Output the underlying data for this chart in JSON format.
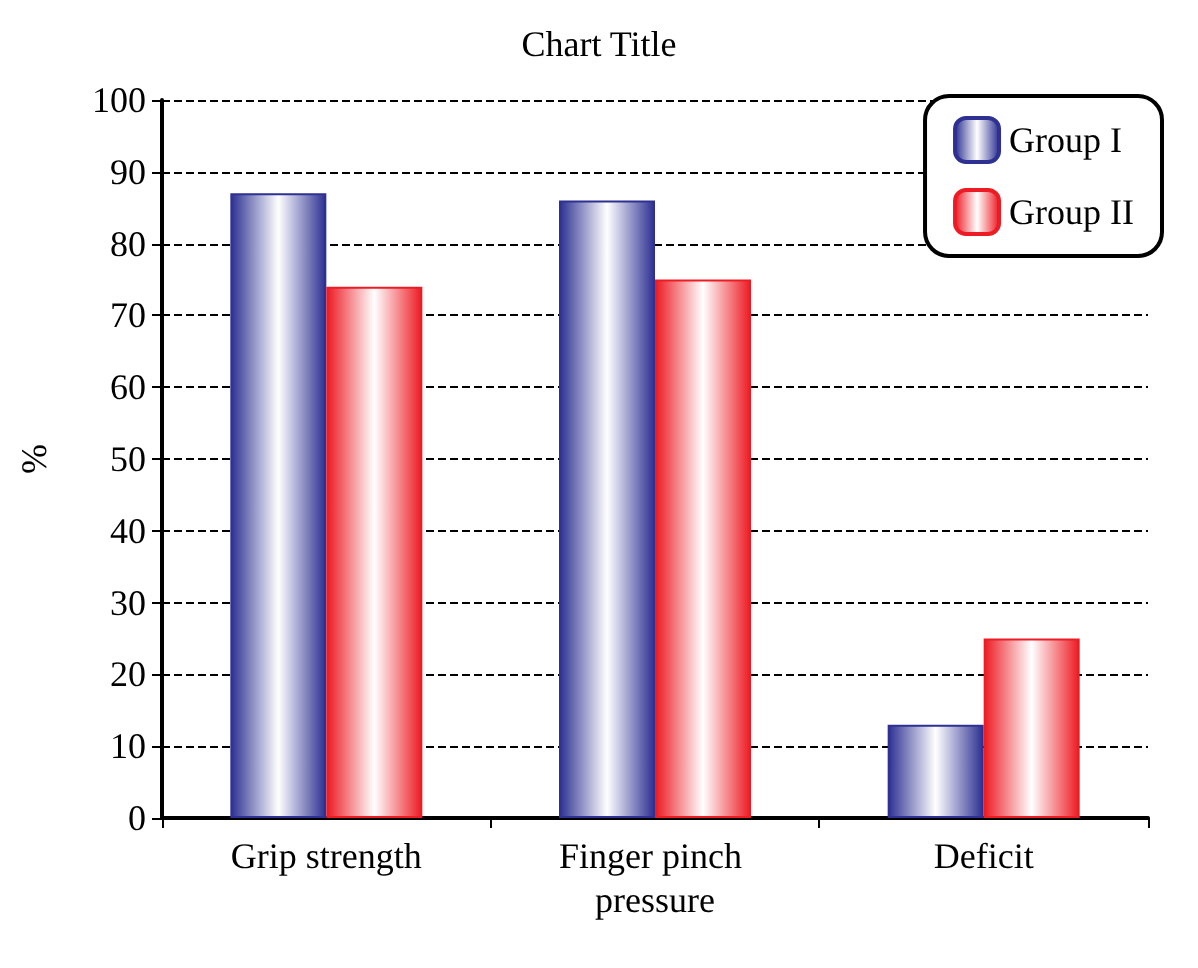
{
  "chart_data": {
    "type": "bar",
    "title": "Chart Title",
    "ylabel": "%",
    "categories": [
      "Grip strength",
      "Finger pinch pressure",
      "Deficit"
    ],
    "series": [
      {
        "name": "Group I",
        "color": "#2e3192",
        "values": [
          87,
          86,
          13
        ]
      },
      {
        "name": "Group II",
        "color": "#ed1c24",
        "values": [
          74,
          75,
          25
        ]
      }
    ],
    "ylim": [
      0,
      100
    ],
    "yticks": [
      0,
      10,
      20,
      30,
      40,
      50,
      60,
      70,
      80,
      90,
      100
    ],
    "grid": "y",
    "legend": "top right"
  }
}
